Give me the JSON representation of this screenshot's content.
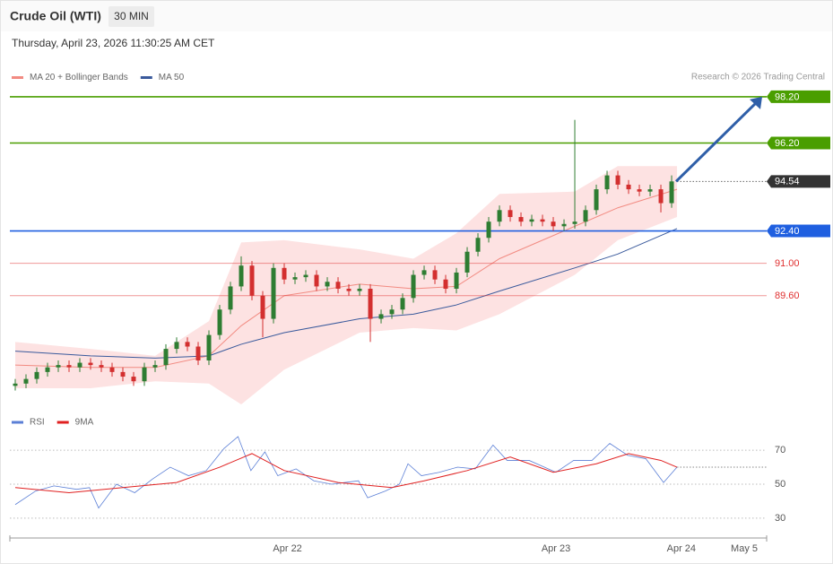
{
  "chart_data": {
    "type": "candlestick",
    "title": "Crude Oil (WTI)",
    "interval": "30 MIN",
    "subtitle": "Thursday, April 23, 2026 11:30:25 AM CET",
    "source": "Research © 2026 Trading Central",
    "up_color": "#2e7d32",
    "down_color": "#d32f2f",
    "xlim": [
      -0.5,
      69.83
    ],
    "xticks": [
      {
        "value": 25.3,
        "label": "Apr 22"
      },
      {
        "value": 50.25,
        "label": "Apr 23"
      },
      {
        "value": 61.9,
        "label": "Apr 24"
      },
      {
        "value": 67.75,
        "label": "May 5"
      }
    ],
    "ylim": [
      84.9,
      98.7
    ],
    "open": [
      85.7,
      85.8,
      86.0,
      86.3,
      86.5,
      86.6,
      86.5,
      86.7,
      86.6,
      86.5,
      86.3,
      86.1,
      85.9,
      86.5,
      86.6,
      87.3,
      87.6,
      87.4,
      86.8,
      87.9,
      89.0,
      90.0,
      90.9,
      89.6,
      88.6,
      90.8,
      90.3,
      90.4,
      90.5,
      90.0,
      90.2,
      89.9,
      89.8,
      89.9,
      88.6,
      88.8,
      89.0,
      89.5,
      90.5,
      90.7,
      90.3,
      89.9,
      90.6,
      91.5,
      92.1,
      92.8,
      93.3,
      93.0,
      92.8,
      92.9,
      92.8,
      92.6,
      92.7,
      92.8,
      93.3,
      94.2,
      94.8,
      94.4,
      94.2,
      94.1,
      94.2,
      93.6
    ],
    "high": [
      86.0,
      86.2,
      86.5,
      86.7,
      86.8,
      86.8,
      86.9,
      86.9,
      86.8,
      86.7,
      86.5,
      86.3,
      86.7,
      86.8,
      87.5,
      87.8,
      87.8,
      87.6,
      88.1,
      89.2,
      90.2,
      91.3,
      91.1,
      89.8,
      91.0,
      91.0,
      90.6,
      90.7,
      90.7,
      90.4,
      90.4,
      90.1,
      90.1,
      90.1,
      89.0,
      89.2,
      89.7,
      90.7,
      90.9,
      90.9,
      90.5,
      90.8,
      91.7,
      92.3,
      93.0,
      93.5,
      93.5,
      93.2,
      93.1,
      93.1,
      93.0,
      92.9,
      97.2,
      93.5,
      94.4,
      95.0,
      95.0,
      94.6,
      94.4,
      94.4,
      94.4,
      94.8
    ],
    "low": [
      85.5,
      85.6,
      85.8,
      86.1,
      86.3,
      86.3,
      86.3,
      86.4,
      86.3,
      86.1,
      85.9,
      85.7,
      85.7,
      86.3,
      86.4,
      87.1,
      87.2,
      86.6,
      86.6,
      87.7,
      88.8,
      89.8,
      89.4,
      87.8,
      88.4,
      90.1,
      90.1,
      90.2,
      89.8,
      89.8,
      89.7,
      89.6,
      89.6,
      87.6,
      88.4,
      88.6,
      88.8,
      89.3,
      90.3,
      90.1,
      89.7,
      89.7,
      90.4,
      91.3,
      91.9,
      92.6,
      92.8,
      92.6,
      92.6,
      92.6,
      92.4,
      92.4,
      92.5,
      92.6,
      93.1,
      94.0,
      94.2,
      94.0,
      93.9,
      93.9,
      93.2,
      93.4
    ],
    "close": [
      85.8,
      86.0,
      86.3,
      86.5,
      86.6,
      86.5,
      86.7,
      86.6,
      86.5,
      86.3,
      86.1,
      85.9,
      86.5,
      86.6,
      87.3,
      87.6,
      87.4,
      86.8,
      87.9,
      89.0,
      90.0,
      90.9,
      89.6,
      88.6,
      90.8,
      90.3,
      90.4,
      90.5,
      90.0,
      90.2,
      89.9,
      89.8,
      89.9,
      88.6,
      88.8,
      89.0,
      89.5,
      90.5,
      90.7,
      90.3,
      89.9,
      90.6,
      91.5,
      92.1,
      92.8,
      93.3,
      93.0,
      92.8,
      92.9,
      92.8,
      92.6,
      92.7,
      92.8,
      93.3,
      94.2,
      94.8,
      94.4,
      94.2,
      94.1,
      94.2,
      93.6,
      94.54
    ],
    "overlays": [
      {
        "name": "MA 20 + Bollinger Bands",
        "color": "#f28b82",
        "band_color": "#fde2e2",
        "x": [
          0,
          7,
          13,
          18,
          21,
          25,
          32,
          37,
          41,
          45,
          52,
          56,
          61.5
        ],
        "values": [
          86.6,
          86.5,
          86.5,
          87.0,
          88.3,
          89.6,
          90.1,
          89.9,
          90.0,
          91.2,
          92.6,
          93.4,
          94.2
        ],
        "upper": [
          87.6,
          87.3,
          87.0,
          88.5,
          91.9,
          92.0,
          91.6,
          91.2,
          92.3,
          94.0,
          94.1,
          95.2,
          95.2
        ],
        "lower": [
          85.6,
          85.6,
          85.9,
          85.8,
          84.9,
          86.4,
          88.0,
          88.2,
          88.1,
          88.8,
          90.5,
          92.0,
          93.0
        ]
      },
      {
        "name": "MA 50",
        "color": "#3a5a9c",
        "x": [
          0,
          7,
          13,
          18,
          21,
          25,
          32,
          37,
          41,
          45,
          52,
          56,
          61.5
        ],
        "values": [
          87.2,
          87.0,
          86.9,
          87.0,
          87.5,
          88.0,
          88.6,
          88.8,
          89.2,
          89.8,
          90.8,
          91.4,
          92.5
        ]
      }
    ],
    "levels": [
      {
        "value": 98.2,
        "label": "98.20",
        "color": "#4a9e00",
        "filled": true
      },
      {
        "value": 96.2,
        "label": "96.20",
        "color": "#4a9e00",
        "filled": true
      },
      {
        "value": 94.54,
        "label": "94.54",
        "color": "#333333",
        "filled": true,
        "current": true
      },
      {
        "value": 92.4,
        "label": "92.40",
        "color": "#1f5fe0",
        "filled": true
      },
      {
        "value": 91.0,
        "label": "91.00",
        "color": "#e03030",
        "filled": false
      },
      {
        "value": 89.6,
        "label": "89.60",
        "color": "#e03030",
        "filled": false
      }
    ],
    "target_arrow_color": "#2f5fa8",
    "rsi": {
      "ylim": [
        21,
        79
      ],
      "yticks": [
        70,
        50,
        30
      ],
      "series": [
        {
          "name": "RSI",
          "color": "#5b7fd6",
          "x": [
            0,
            1.9,
            3.6,
            5.7,
            6.9,
            7.75,
            9.4,
            11.1,
            12.75,
            14.4,
            16.1,
            17.75,
            19.4,
            20.7,
            21.9,
            23.2,
            24.4,
            26.1,
            27.75,
            29.4,
            31.9,
            32.75,
            34.4,
            35.7,
            36.5,
            37.75,
            39.4,
            41.1,
            42.75,
            44.4,
            45.7,
            47.75,
            50.25,
            51.9,
            53.6,
            55.25,
            56.9,
            58.6,
            60.25,
            61.5
          ],
          "values": [
            38,
            46,
            49,
            47,
            48,
            36,
            50,
            45,
            53,
            60,
            55,
            58,
            71,
            78,
            58,
            69,
            55,
            59,
            52,
            50,
            52,
            42,
            46,
            50,
            62,
            55,
            57,
            60,
            59,
            73,
            64,
            64,
            57,
            64,
            64,
            74,
            67,
            65,
            51,
            60
          ]
        },
        {
          "name": "9MA",
          "color": "#e02020",
          "x": [
            0,
            5,
            10,
            15,
            19,
            22,
            25,
            30,
            35,
            38,
            42,
            46,
            50,
            54,
            57,
            60,
            61.5
          ],
          "values": [
            48,
            45,
            48,
            51,
            60,
            68,
            58,
            51,
            48,
            52,
            58,
            66,
            57,
            62,
            68,
            64,
            60
          ]
        }
      ]
    }
  }
}
